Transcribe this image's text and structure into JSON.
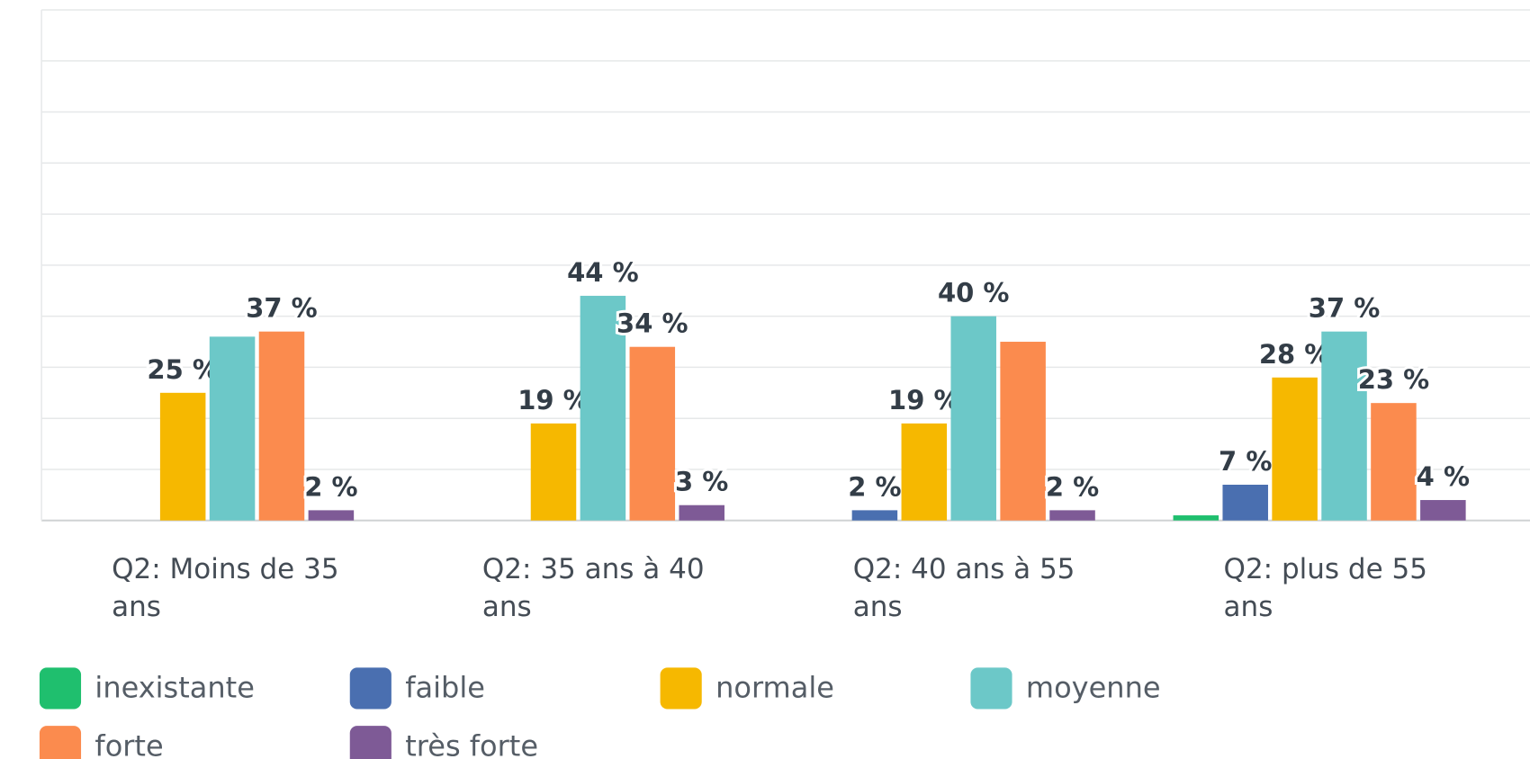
{
  "chart_data": {
    "type": "bar",
    "categories": [
      "Q2: Moins de 35 ans",
      "Q2: 35 ans à 40 ans",
      "Q2: 40 ans à 55 ans",
      "Q2: plus de 55 ans"
    ],
    "series": [
      {
        "name": "inexistante",
        "color": "#1fbf6e",
        "values": [
          0,
          0,
          0,
          1
        ],
        "value_labels": [
          null,
          null,
          null,
          null
        ]
      },
      {
        "name": "faible",
        "color": "#4a6fb0",
        "values": [
          0,
          0,
          2,
          7
        ],
        "value_labels": [
          null,
          null,
          "2 %",
          "7 %"
        ]
      },
      {
        "name": "normale",
        "color": "#f6b800",
        "values": [
          25,
          19,
          19,
          28
        ],
        "value_labels": [
          "25 %",
          "19 %",
          "19 %",
          "28 %"
        ]
      },
      {
        "name": "moyenne",
        "color": "#6cc8c8",
        "values": [
          36,
          44,
          40,
          37
        ],
        "value_labels": [
          null,
          "44 %",
          "40 %",
          "37 %"
        ]
      },
      {
        "name": "forte",
        "color": "#fb8b4e",
        "values": [
          37,
          34,
          35,
          23
        ],
        "value_labels": [
          "37 %",
          "34 %",
          null,
          "23 %"
        ]
      },
      {
        "name": "très forte",
        "color": "#7e5a96",
        "values": [
          2,
          3,
          2,
          4
        ],
        "value_labels": [
          "2 %",
          "3 %",
          "2 %",
          "4 %"
        ]
      }
    ],
    "ylim": [
      0,
      100
    ],
    "yticks": [
      0,
      10,
      20,
      30,
      40,
      50,
      60,
      70,
      80,
      90,
      100
    ],
    "grid": true
  }
}
